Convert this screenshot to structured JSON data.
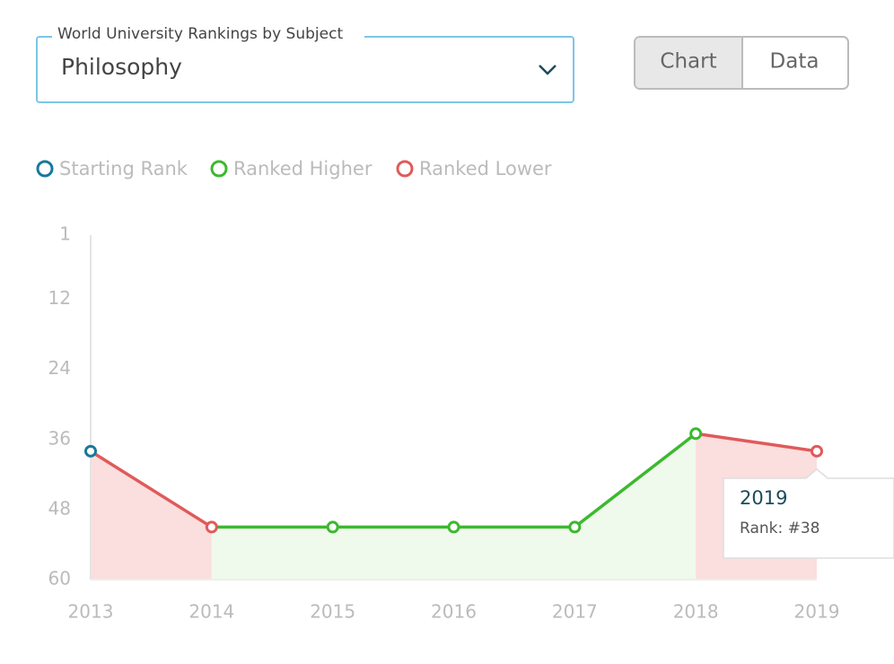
{
  "dropdown": {
    "label": "World University Rankings by Subject",
    "value": "Philosophy"
  },
  "view_toggle": {
    "options": [
      "Chart",
      "Data"
    ]
  },
  "chart_data": {
    "type": "line",
    "legend": [
      {
        "name": "Starting Rank",
        "color": "#17799b"
      },
      {
        "name": "Ranked Higher",
        "color": "#3cb92f"
      },
      {
        "name": "Ranked Lower",
        "color": "#e05a5a"
      }
    ],
    "categories": [
      "2013",
      "2014",
      "2015",
      "2016",
      "2017",
      "2018",
      "2019"
    ],
    "values": [
      38,
      51,
      51,
      51,
      51,
      35,
      38
    ],
    "ylim": [
      60,
      1
    ],
    "yticks": [
      1,
      12,
      24,
      36,
      48,
      60
    ],
    "tooltip": {
      "title": "2019",
      "label": "Rank: #38"
    }
  }
}
